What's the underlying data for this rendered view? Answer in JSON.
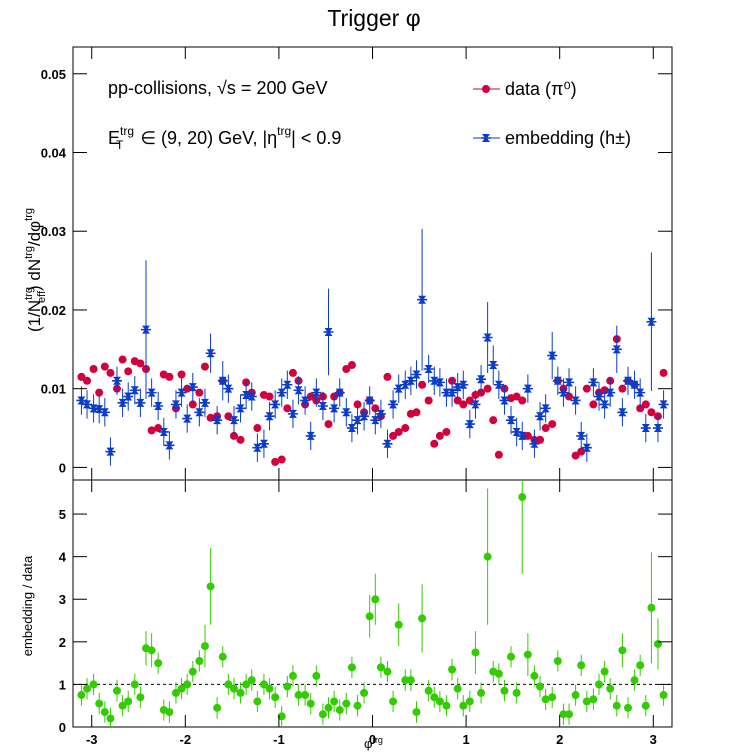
{
  "chart_data": [
    {
      "type": "scatter",
      "title": "Trigger φ",
      "annotations": [
        [
          "pp-collisions, √s = 200 GeV"
        ],
        [
          "E",
          "trg",
          "T",
          " ∈ (9, 20) GeV, |η",
          "trg",
          "| < 0.9"
        ]
      ],
      "ylabel": [
        "(1/N",
        "trg",
        "eff",
        ") dN",
        "trg",
        "/dφ",
        "trg"
      ],
      "legend": "top-right",
      "x": [
        -3.11,
        -3.05,
        -2.98,
        -2.92,
        -2.86,
        -2.8,
        -2.73,
        -2.67,
        -2.61,
        -2.54,
        -2.48,
        -2.42,
        -2.36,
        -2.29,
        -2.23,
        -2.17,
        -2.1,
        -2.04,
        -1.98,
        -1.92,
        -1.85,
        -1.79,
        -1.73,
        -1.66,
        -1.6,
        -1.54,
        -1.48,
        -1.41,
        -1.35,
        -1.29,
        -1.23,
        -1.16,
        -1.1,
        -1.04,
        -0.97,
        -0.91,
        -0.85,
        -0.79,
        -0.72,
        -0.66,
        -0.6,
        -0.53,
        -0.47,
        -0.41,
        -0.35,
        -0.28,
        -0.22,
        -0.16,
        -0.09,
        -0.03,
        0.03,
        0.09,
        0.16,
        0.22,
        0.28,
        0.35,
        0.41,
        0.47,
        0.53,
        0.6,
        0.66,
        0.72,
        0.79,
        0.85,
        0.91,
        0.97,
        1.04,
        1.1,
        1.16,
        1.23,
        1.29,
        1.35,
        1.41,
        1.48,
        1.54,
        1.6,
        1.66,
        1.73,
        1.79,
        1.85,
        1.92,
        1.98,
        2.04,
        2.1,
        2.17,
        2.23,
        2.29,
        2.36,
        2.42,
        2.48,
        2.54,
        2.61,
        2.67,
        2.73,
        2.8,
        2.86,
        2.92,
        2.98,
        3.05,
        3.11
      ],
      "xlim": [
        -3.2,
        3.2
      ],
      "xticks": [
        -3,
        -2,
        -1,
        0,
        1,
        2,
        3
      ],
      "ylim": [
        -0.0016,
        0.0534
      ],
      "yticks": [
        0,
        0.01,
        0.02,
        0.03,
        0.04,
        0.05
      ],
      "series": [
        {
          "name": "data (π⁰)",
          "color": "#d2003c",
          "marker": "circle",
          "values": [
            0.0115,
            0.011,
            0.0125,
            0.0095,
            0.0128,
            0.012,
            0.01,
            0.0137,
            0.0122,
            0.0135,
            0.0132,
            0.0125,
            0.0047,
            0.005,
            0.0118,
            0.0115,
            0.0075,
            0.0118,
            0.01,
            0.008,
            0.0095,
            0.0128,
            0.0063,
            0.0065,
            0.011,
            0.0065,
            0.004,
            0.0035,
            0.0108,
            0.0095,
            0.005,
            0.0092,
            0.009,
            0.0007,
            0.001,
            0.0075,
            0.012,
            0.011,
            0.008,
            0.009,
            0.0085,
            0.009,
            0.0055,
            0.009,
            0.0095,
            0.0125,
            0.013,
            0.008,
            0.007,
            0.0085,
            0.0075,
            0.0065,
            0.0115,
            0.004,
            0.0045,
            0.005,
            0.0068,
            0.007,
            0.0105,
            0.0085,
            0.003,
            0.004,
            0.0045,
            0.011,
            0.0085,
            0.008,
            0.0085,
            0.0092,
            0.0095,
            0.01,
            0.006,
            0.0016,
            0.01,
            0.0088,
            0.009,
            0.0085,
            0.004,
            0.0035,
            0.0035,
            0.005,
            0.0055,
            0.011,
            0.01,
            0.009,
            0.0015,
            0.002,
            0.01,
            0.008,
            0.0095,
            0.0098,
            0.011,
            0.0163,
            0.01,
            0.011,
            0.0105,
            0.0075,
            0.008,
            0.007,
            0.0065,
            0.012
          ]
        },
        {
          "name": "embedding (h±)",
          "color": "#0a3cc8",
          "marker": "star",
          "values": [
            0.0085,
            0.008,
            0.0075,
            0.0074,
            0.007,
            0.002,
            0.011,
            0.0082,
            0.009,
            0.0098,
            0.0082,
            0.0175,
            0.0095,
            0.0078,
            0.0045,
            0.0028,
            0.008,
            0.0095,
            0.0062,
            0.0102,
            0.007,
            0.0082,
            0.0145,
            0.006,
            0.011,
            0.01,
            0.006,
            0.0075,
            0.0092,
            0.009,
            0.0025,
            0.003,
            0.0065,
            0.008,
            0.0095,
            0.0105,
            0.0068,
            0.0098,
            0.0085,
            0.004,
            0.0095,
            0.0078,
            0.0172,
            0.0075,
            0.0095,
            0.007,
            0.005,
            0.006,
            0.0065,
            0.0085,
            0.006,
            0.0068,
            0.003,
            0.008,
            0.01,
            0.0105,
            0.011,
            0.0118,
            0.0213,
            0.0125,
            0.011,
            0.0108,
            0.0095,
            0.0095,
            0.0102,
            0.0105,
            0.0055,
            0.008,
            0.0112,
            0.0165,
            0.013,
            0.0105,
            0.0085,
            0.006,
            0.0045,
            0.004,
            0.01,
            0.003,
            0.0065,
            0.0075,
            0.0142,
            0.011,
            0.0095,
            0.0108,
            0.0085,
            0.004,
            0.0025,
            0.0108,
            0.009,
            0.008,
            0.0095,
            0.015,
            0.007,
            0.011,
            0.0105,
            0.0095,
            0.005,
            0.0185,
            0.005,
            0.008
          ],
          "errors": [
            0.0018,
            0.0018,
            0.0018,
            0.0018,
            0.0018,
            0.0018,
            0.0018,
            0.0018,
            0.0018,
            0.0018,
            0.0018,
            0.0088,
            0.0018,
            0.0018,
            0.0018,
            0.0018,
            0.0018,
            0.0018,
            0.0018,
            0.0018,
            0.0018,
            0.0018,
            0.0025,
            0.0018,
            0.0025,
            0.0018,
            0.0018,
            0.0018,
            0.0018,
            0.0018,
            0.0018,
            0.0018,
            0.0018,
            0.0018,
            0.0018,
            0.0018,
            0.0018,
            0.0018,
            0.0018,
            0.0018,
            0.0018,
            0.0018,
            0.0055,
            0.0018,
            0.0018,
            0.0018,
            0.0018,
            0.0018,
            0.0018,
            0.0018,
            0.0018,
            0.0018,
            0.0018,
            0.0018,
            0.0018,
            0.0018,
            0.0018,
            0.0018,
            0.009,
            0.0018,
            0.0018,
            0.0018,
            0.0018,
            0.0018,
            0.0018,
            0.0018,
            0.0018,
            0.0018,
            0.0018,
            0.0045,
            0.0025,
            0.0018,
            0.0018,
            0.0018,
            0.0018,
            0.0018,
            0.0018,
            0.0018,
            0.0018,
            0.0018,
            0.003,
            0.0018,
            0.0018,
            0.0018,
            0.0018,
            0.0018,
            0.0018,
            0.0018,
            0.0018,
            0.0018,
            0.0018,
            0.003,
            0.0018,
            0.0018,
            0.0018,
            0.0018,
            0.0018,
            0.0088,
            0.0018,
            0.0018
          ]
        }
      ]
    },
    {
      "type": "scatter",
      "ylabel": "embedding / data",
      "xlabel": [
        "φ",
        "trg"
      ],
      "ylim": [
        0,
        5.8
      ],
      "yticks": [
        0,
        1,
        2,
        3,
        4,
        5
      ],
      "ref_line": 1,
      "color": "#33cc00",
      "values": [
        0.75,
        0.9,
        1.0,
        0.55,
        0.35,
        0.2,
        0.85,
        0.5,
        0.6,
        1.0,
        0.7,
        1.85,
        1.8,
        1.5,
        0.4,
        0.35,
        0.8,
        0.9,
        1.0,
        1.3,
        1.55,
        1.9,
        3.3,
        0.45,
        1.65,
        1.0,
        0.9,
        0.8,
        1.0,
        1.1,
        0.6,
        1.0,
        0.9,
        0.7,
        0.25,
        0.95,
        1.2,
        0.75,
        0.75,
        0.55,
        1.2,
        0.3,
        0.45,
        0.6,
        0.4,
        0.55,
        1.4,
        0.5,
        0.8,
        2.6,
        3.0,
        1.4,
        1.3,
        0.6,
        2.4,
        1.1,
        1.1,
        0.35,
        2.55,
        0.85,
        0.7,
        0.6,
        0.5,
        1.35,
        0.9,
        0.5,
        0.6,
        1.75,
        0.8,
        4.0,
        1.3,
        1.25,
        0.85,
        1.65,
        0.8,
        5.4,
        1.7,
        1.2,
        0.95,
        0.65,
        0.7,
        1.55,
        0.3,
        0.3,
        0.75,
        1.45,
        0.6,
        0.65,
        1.0,
        1.3,
        0.9,
        0.5,
        1.8,
        0.45,
        1.1,
        1.45,
        0.5,
        2.8,
        1.95,
        0.75
      ],
      "errors": [
        0.25,
        0.25,
        0.25,
        0.25,
        0.25,
        0.25,
        0.25,
        0.25,
        0.25,
        0.25,
        0.25,
        0.4,
        0.4,
        0.25,
        0.25,
        0.25,
        0.25,
        0.25,
        0.25,
        0.25,
        0.25,
        0.5,
        0.9,
        0.25,
        0.25,
        0.25,
        0.25,
        0.25,
        0.25,
        0.25,
        0.25,
        0.25,
        0.25,
        0.25,
        0.25,
        0.25,
        0.25,
        0.25,
        0.25,
        0.25,
        0.25,
        0.25,
        0.25,
        0.25,
        0.25,
        0.25,
        0.25,
        0.25,
        0.25,
        0.5,
        0.6,
        0.25,
        0.25,
        0.25,
        0.5,
        0.25,
        0.25,
        0.25,
        0.8,
        0.25,
        0.25,
        0.25,
        0.25,
        0.25,
        0.25,
        0.25,
        0.25,
        0.5,
        0.25,
        1.6,
        0.25,
        0.25,
        0.25,
        0.25,
        0.25,
        1.8,
        0.5,
        0.25,
        0.25,
        0.25,
        0.25,
        0.25,
        0.25,
        0.25,
        0.25,
        0.25,
        0.25,
        0.25,
        0.25,
        0.25,
        0.25,
        0.25,
        0.4,
        0.25,
        0.25,
        0.25,
        0.25,
        1.3,
        0.6,
        0.25
      ]
    }
  ]
}
